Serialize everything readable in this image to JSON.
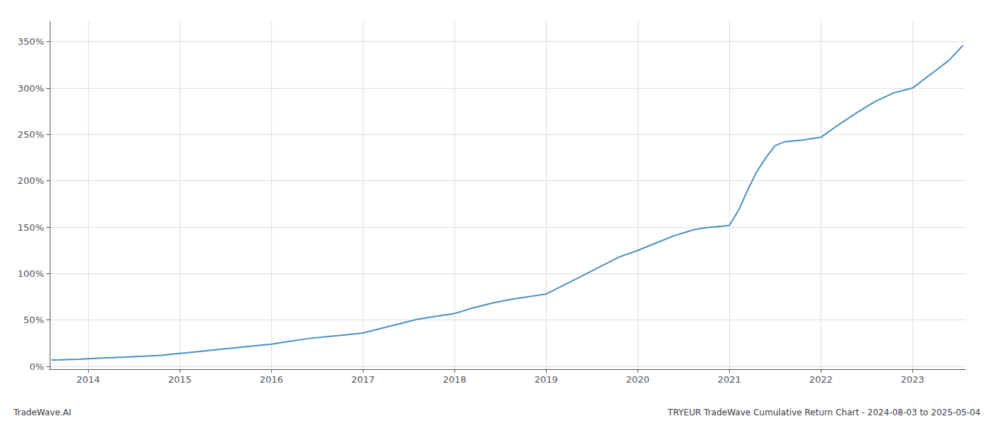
{
  "chart_data": {
    "type": "line",
    "title": "TRYEUR TradeWave Cumulative Return Chart - 2024-08-03 to 2025-05-04",
    "annotations": [
      "TradeWave.AI"
    ],
    "color": "#4a90c4",
    "grid": true,
    "xlim": [
      2013.58,
      2023.58
    ],
    "ylim": [
      -0.03,
      3.72
    ],
    "xticks": [
      2014,
      2015,
      2016,
      2017,
      2018,
      2019,
      2020,
      2021,
      2022,
      2023
    ],
    "yticks": [
      {
        "value": 0.0,
        "label": "0%"
      },
      {
        "value": 0.5,
        "label": "50%"
      },
      {
        "value": 1.0,
        "label": "100%"
      },
      {
        "value": 1.5,
        "label": "150%"
      },
      {
        "value": 2.0,
        "label": "200%"
      },
      {
        "value": 2.5,
        "label": "250%"
      },
      {
        "value": 3.0,
        "label": "300%"
      },
      {
        "value": 3.5,
        "label": "350%"
      }
    ],
    "x": [
      2013.6,
      2013.7,
      2013.9,
      2014.0,
      2014.2,
      2014.4,
      2014.6,
      2014.8,
      2014.9,
      2015.0,
      2015.2,
      2015.4,
      2015.6,
      2015.8,
      2016.0,
      2016.2,
      2016.4,
      2016.6,
      2016.8,
      2017.0,
      2017.2,
      2017.4,
      2017.6,
      2017.8,
      2018.0,
      2018.2,
      2018.4,
      2018.6,
      2018.8,
      2019.0,
      2019.2,
      2019.4,
      2019.6,
      2019.8,
      2020.0,
      2020.2,
      2020.4,
      2020.5,
      2020.6,
      2020.7,
      2020.8,
      2021.0,
      2021.1,
      2021.2,
      2021.3,
      2021.4,
      2021.5,
      2021.6,
      2021.8,
      2022.0,
      2022.2,
      2022.4,
      2022.6,
      2022.8,
      2023.0,
      2023.2,
      2023.4,
      2023.55
    ],
    "values": [
      0.07,
      0.072,
      0.078,
      0.083,
      0.092,
      0.1,
      0.11,
      0.12,
      0.13,
      0.14,
      0.16,
      0.18,
      0.2,
      0.22,
      0.24,
      0.27,
      0.3,
      0.32,
      0.34,
      0.36,
      0.41,
      0.46,
      0.51,
      0.54,
      0.57,
      0.63,
      0.68,
      0.72,
      0.75,
      0.78,
      0.88,
      0.98,
      1.08,
      1.18,
      1.25,
      1.33,
      1.41,
      1.44,
      1.47,
      1.49,
      1.5,
      1.52,
      1.68,
      1.9,
      2.1,
      2.25,
      2.38,
      2.42,
      2.44,
      2.47,
      2.61,
      2.74,
      2.86,
      2.95,
      3.0,
      3.15,
      3.3,
      3.46
    ]
  }
}
